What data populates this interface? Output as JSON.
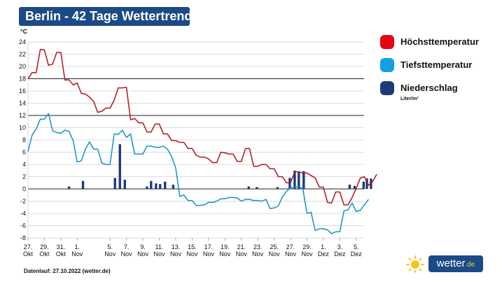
{
  "title": "Berlin - 42 Tage Wettertrend",
  "unit": "°C",
  "footer": "Datenlauf: 27.10.2022 (wetter.de)",
  "logo": {
    "name": "wetter",
    "tld": ".de"
  },
  "legend": [
    {
      "label": "Höchsttemperatur",
      "color": "#e30613"
    },
    {
      "label": "Tiefsttemperatur",
      "color": "#129fe3"
    },
    {
      "label": "Niederschlag",
      "color": "#1c3c75",
      "sub": "Liter/m²"
    }
  ],
  "chart_data": {
    "type": "line",
    "title": "Berlin - 42 Tage Wettertrend",
    "ylabel": "°C",
    "ylim": [
      -8,
      24
    ],
    "yticks": [
      -8,
      -6,
      -4,
      -2,
      0,
      2,
      4,
      6,
      8,
      10,
      12,
      14,
      16,
      18,
      20,
      22,
      24
    ],
    "xrange": [
      0,
      42
    ],
    "xticks": [
      {
        "x": 0,
        "day": "27.",
        "month": "Okt"
      },
      {
        "x": 2,
        "day": "29.",
        "month": "Okt"
      },
      {
        "x": 4,
        "day": "31.",
        "month": "Okt"
      },
      {
        "x": 6,
        "day": "1.",
        "month": "Nov"
      },
      {
        "x": 10,
        "day": "5.",
        "month": "Nov"
      },
      {
        "x": 12,
        "day": "7.",
        "month": "Nov"
      },
      {
        "x": 14,
        "day": "9.",
        "month": "Nov"
      },
      {
        "x": 16,
        "day": "11.",
        "month": "Nov"
      },
      {
        "x": 18,
        "day": "13.",
        "month": "Nov"
      },
      {
        "x": 20,
        "day": "15.",
        "month": "Nov"
      },
      {
        "x": 22,
        "day": "17.",
        "month": "Nov"
      },
      {
        "x": 24,
        "day": "19.",
        "month": "Nov"
      },
      {
        "x": 26,
        "day": "21.",
        "month": "Nov"
      },
      {
        "x": 28,
        "day": "23.",
        "month": "Nov"
      },
      {
        "x": 30,
        "day": "25.",
        "month": "Nov"
      },
      {
        "x": 32,
        "day": "27.",
        "month": "Nov"
      },
      {
        "x": 34,
        "day": "29.",
        "month": "Nov"
      },
      {
        "x": 36,
        "day": "1.",
        "month": "Dez"
      },
      {
        "x": 38,
        "day": "3.",
        "month": "Dez"
      },
      {
        "x": 40,
        "day": "5.",
        "month": "Dez"
      }
    ],
    "series": [
      {
        "name": "Höchsttemperatur",
        "color": "#b3151d",
        "points": [
          [
            0,
            18
          ],
          [
            0.5,
            19
          ],
          [
            1,
            19
          ],
          [
            1.5,
            22.8
          ],
          [
            2,
            22.7
          ],
          [
            2.5,
            20.2
          ],
          [
            3,
            20.4
          ],
          [
            3.5,
            22.3
          ],
          [
            4,
            22.3
          ],
          [
            4.5,
            17.8
          ],
          [
            5,
            17.8
          ],
          [
            5.5,
            17
          ],
          [
            6,
            17.3
          ],
          [
            6.5,
            15.6
          ],
          [
            7,
            15.5
          ],
          [
            7.5,
            15
          ],
          [
            8,
            14.3
          ],
          [
            8.5,
            12.5
          ],
          [
            9,
            12.7
          ],
          [
            9.5,
            13.2
          ],
          [
            10,
            13.2
          ],
          [
            10.5,
            14.5
          ],
          [
            11,
            16.5
          ],
          [
            11.5,
            16.5
          ],
          [
            12,
            16.6
          ],
          [
            12.5,
            11.3
          ],
          [
            13,
            11.5
          ],
          [
            13.5,
            10.8
          ],
          [
            14,
            10.8
          ],
          [
            14.5,
            9.3
          ],
          [
            15,
            9.3
          ],
          [
            15.5,
            10.6
          ],
          [
            16,
            10.6
          ],
          [
            16.5,
            9
          ],
          [
            17,
            9
          ],
          [
            17.5,
            7.9
          ],
          [
            18,
            7.9
          ],
          [
            18.5,
            7.6
          ],
          [
            19,
            7.6
          ],
          [
            19.5,
            6.6
          ],
          [
            20,
            6.6
          ],
          [
            20.5,
            5.5
          ],
          [
            21,
            5.2
          ],
          [
            21.5,
            5.2
          ],
          [
            22,
            4.9
          ],
          [
            22.5,
            4.3
          ],
          [
            23,
            4.3
          ],
          [
            23.5,
            6
          ],
          [
            24,
            5.9
          ],
          [
            24.5,
            5.7
          ],
          [
            25,
            5.7
          ],
          [
            25.5,
            4.5
          ],
          [
            26,
            4.5
          ],
          [
            26.5,
            6.6
          ],
          [
            27,
            6.6
          ],
          [
            27.5,
            3.7
          ],
          [
            28,
            3.7
          ],
          [
            28.5,
            4
          ],
          [
            29,
            4
          ],
          [
            29.5,
            3.3
          ],
          [
            30,
            3.3
          ],
          [
            30.5,
            2
          ],
          [
            31,
            2
          ],
          [
            31.5,
            1
          ],
          [
            32,
            1
          ],
          [
            32.5,
            2.8
          ],
          [
            33,
            2.8
          ],
          [
            33.5,
            2.6
          ],
          [
            34,
            2.6
          ],
          [
            34.5,
            2.2
          ],
          [
            35,
            1.8
          ],
          [
            35.5,
            0.3
          ],
          [
            36,
            0.3
          ],
          [
            36.5,
            -2.2
          ],
          [
            37,
            -2.3
          ],
          [
            37.5,
            -0.5
          ],
          [
            38,
            -0.5
          ],
          [
            38.5,
            -2.6
          ],
          [
            39,
            -2.6
          ],
          [
            39.5,
            -1.4
          ],
          [
            40,
            0.1
          ],
          [
            40.5,
            1.8
          ],
          [
            41,
            2
          ],
          [
            41.5,
            0.6
          ],
          [
            42,
            1.2
          ],
          [
            42.5,
            2.4
          ]
        ]
      },
      {
        "name": "Tiefsttemperatur",
        "color": "#1392c9",
        "points": [
          [
            0,
            6.1
          ],
          [
            0.5,
            8.8
          ],
          [
            1,
            9.8
          ],
          [
            1.5,
            11.4
          ],
          [
            2,
            11.4
          ],
          [
            2.5,
            12.3
          ],
          [
            3,
            9.5
          ],
          [
            3.5,
            9.2
          ],
          [
            4,
            9.1
          ],
          [
            4.5,
            9.6
          ],
          [
            5,
            9.4
          ],
          [
            5.5,
            7.9
          ],
          [
            6,
            4.4
          ],
          [
            6.5,
            4.6
          ],
          [
            7,
            6.5
          ],
          [
            7.5,
            7.7
          ],
          [
            8,
            6.5
          ],
          [
            8.5,
            6.5
          ],
          [
            9,
            4.2
          ],
          [
            9.5,
            4
          ],
          [
            10,
            4
          ],
          [
            10.5,
            9
          ],
          [
            11,
            8.9
          ],
          [
            11.5,
            9.6
          ],
          [
            12,
            8.4
          ],
          [
            12.5,
            9
          ],
          [
            13,
            5.7
          ],
          [
            13.5,
            5.7
          ],
          [
            14,
            5.7
          ],
          [
            14.5,
            7
          ],
          [
            15,
            7
          ],
          [
            15.5,
            6.8
          ],
          [
            16,
            6.8
          ],
          [
            16.5,
            7
          ],
          [
            17,
            6.5
          ],
          [
            17.5,
            5.3
          ],
          [
            18,
            3.4
          ],
          [
            18.5,
            -1.2
          ],
          [
            19,
            -1
          ],
          [
            19.5,
            -1.9
          ],
          [
            20,
            -1.9
          ],
          [
            20.5,
            -2.7
          ],
          [
            21,
            -2.7
          ],
          [
            21.5,
            -2.6
          ],
          [
            22,
            -2.2
          ],
          [
            22.5,
            -2.2
          ],
          [
            23,
            -2
          ],
          [
            23.5,
            -1.6
          ],
          [
            24,
            -1.6
          ],
          [
            24.5,
            -1.4
          ],
          [
            25,
            -1.4
          ],
          [
            25.5,
            -1.5
          ],
          [
            26,
            -2
          ],
          [
            26.5,
            -1.7
          ],
          [
            27,
            -1.7
          ],
          [
            27.5,
            -1.9
          ],
          [
            28,
            -1.9
          ],
          [
            28.5,
            -2
          ],
          [
            29,
            -1.7
          ],
          [
            29.5,
            -3.2
          ],
          [
            30,
            -3.1
          ],
          [
            30.5,
            -2.8
          ],
          [
            31,
            -1.3
          ],
          [
            31.5,
            -0.4
          ],
          [
            32,
            0.2
          ],
          [
            32.5,
            0.3
          ],
          [
            33,
            0.4
          ],
          [
            33.5,
            0
          ],
          [
            34,
            -4
          ],
          [
            34.5,
            -3.8
          ],
          [
            35,
            -6.8
          ],
          [
            35.5,
            -6.5
          ],
          [
            36,
            -6.5
          ],
          [
            36.5,
            -6.7
          ],
          [
            37,
            -7.3
          ],
          [
            37.5,
            -7
          ],
          [
            38,
            -7
          ],
          [
            38.5,
            -3.6
          ],
          [
            39,
            -3.4
          ],
          [
            39.5,
            -2.3
          ],
          [
            40,
            -3.7
          ],
          [
            40.5,
            -3.5
          ],
          [
            41,
            -2.6
          ],
          [
            41.5,
            -1.7
          ]
        ]
      }
    ],
    "precipitation": {
      "name": "Niederschlag",
      "color": "#1c3c75",
      "unit": "Liter/m²",
      "bars": [
        [
          5,
          0.4
        ],
        [
          6.7,
          1.3
        ],
        [
          10.6,
          1.8
        ],
        [
          11.2,
          7.3
        ],
        [
          11.8,
          1.5
        ],
        [
          14.5,
          0.4
        ],
        [
          15,
          1.3
        ],
        [
          15.6,
          0.9
        ],
        [
          16.1,
          0.8
        ],
        [
          16.7,
          1.2
        ],
        [
          17.7,
          0.7
        ],
        [
          26.9,
          0.4
        ],
        [
          27.9,
          0.3
        ],
        [
          30.4,
          0.3
        ],
        [
          31.9,
          1.8
        ],
        [
          32.5,
          3
        ],
        [
          33,
          2.7
        ],
        [
          33.6,
          2.9
        ],
        [
          39.2,
          0.7
        ],
        [
          39.8,
          0.5
        ],
        [
          40.9,
          1.2
        ],
        [
          41.3,
          1.7
        ],
        [
          41.8,
          1.7
        ]
      ]
    }
  }
}
